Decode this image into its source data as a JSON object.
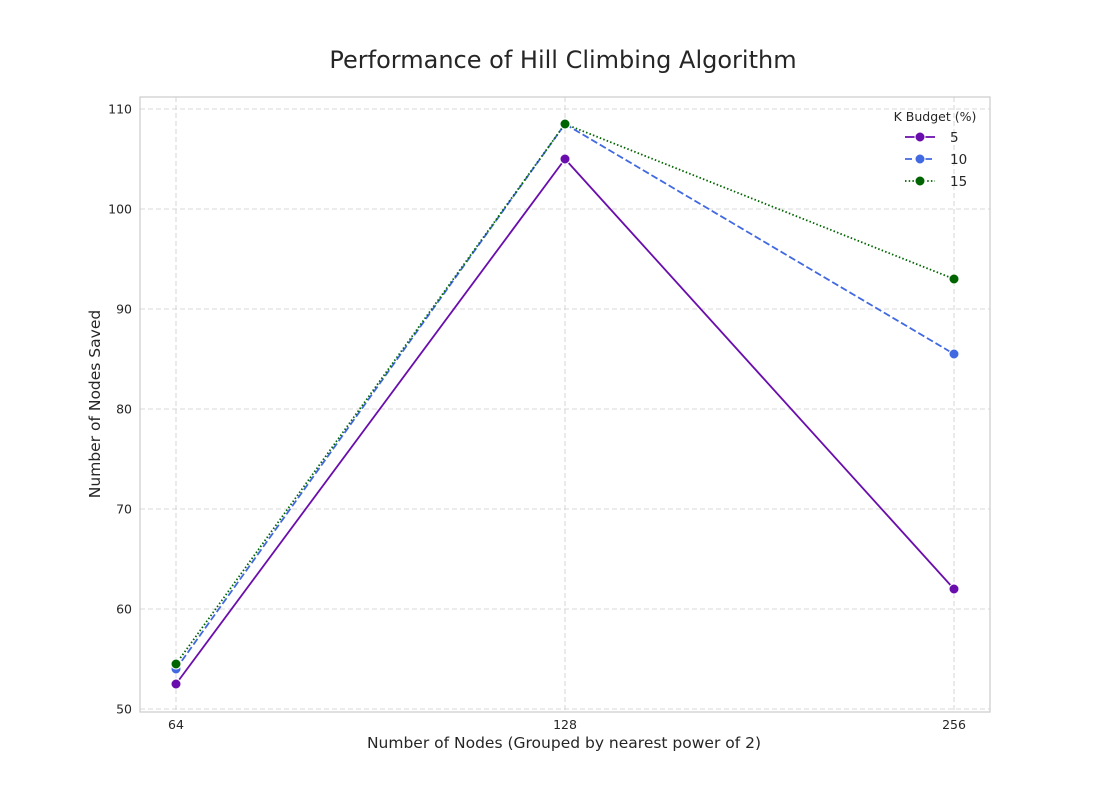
{
  "chart_data": {
    "type": "line",
    "title": "Performance of Hill Climbing Algorithm",
    "xlabel": "Number of Nodes (Grouped by nearest power of 2)",
    "ylabel": "Number of Nodes Saved",
    "x": [
      64,
      128,
      256
    ],
    "x_tick_labels": [
      "64",
      "128",
      "256"
    ],
    "y_ticks": [
      50,
      60,
      70,
      80,
      90,
      100,
      110
    ],
    "y_tick_labels": [
      "50",
      "60",
      "70",
      "80",
      "90",
      "100",
      "110"
    ],
    "ylim": [
      49.7,
      111.2
    ],
    "grid": true,
    "legend": {
      "title": "K Budget (%)",
      "placement": "top-right"
    },
    "series": [
      {
        "name": "5",
        "values": [
          52.5,
          105.0,
          62.0
        ],
        "color": "#6a0dad",
        "line_style": "solid"
      },
      {
        "name": "10",
        "values": [
          54.0,
          108.5,
          85.5
        ],
        "color": "#4169e1",
        "line_style": "dashed"
      },
      {
        "name": "15",
        "values": [
          54.5,
          108.5,
          93.0
        ],
        "color": "#006400",
        "line_style": "dotted"
      }
    ]
  }
}
